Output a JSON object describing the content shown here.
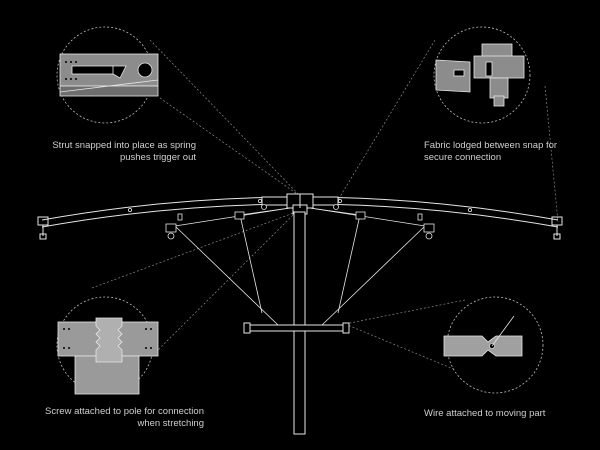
{
  "captions": {
    "strut": "Strut snapped into place as spring pushes trigger out",
    "fabric": "Fabric lodged between snap for secure connection",
    "screw": "Screw attached to pole for connection when stretching",
    "wire": "Wire attached to moving part"
  },
  "colors": {
    "background": "#000000",
    "line": "#e6e6e6",
    "detail_fill": "#9a9a9a",
    "leader": "#8a8a8a"
  }
}
